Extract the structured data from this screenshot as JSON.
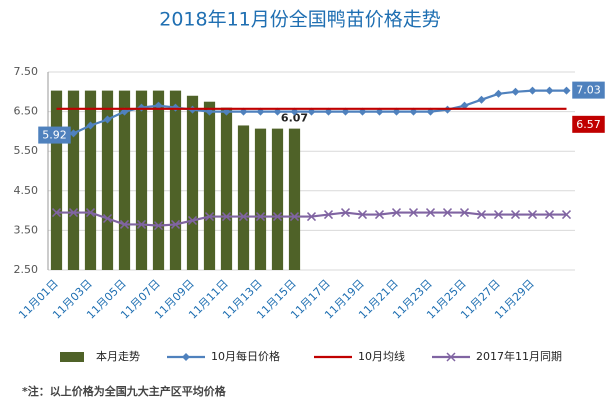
{
  "chart_data": {
    "type": "bar-line",
    "title": "2018年11月份全国鸭苗价格走势",
    "categories": [
      "11月01日",
      null,
      "11月03日",
      null,
      "11月05日",
      null,
      "11月07日",
      null,
      "11月09日",
      null,
      "11月11日",
      null,
      "11月13日",
      null,
      "11月15日",
      null,
      "11月17日",
      null,
      "11月19日",
      null,
      "11月21日",
      null,
      "11月23日",
      null,
      "11月25日",
      null,
      "11月27日",
      null,
      "11月29日",
      null,
      null
    ],
    "ylim": [
      2.5,
      7.5
    ],
    "yticks": [
      {
        "value": 2.5,
        "label": "2.50"
      },
      {
        "value": 3.5,
        "label": "3.50"
      },
      {
        "value": 4.5,
        "label": "4.50"
      },
      {
        "value": 5.5,
        "label": "5.50"
      },
      {
        "value": 6.5,
        "label": "6.50"
      },
      {
        "value": 7.5,
        "label": "7.50"
      }
    ],
    "series": [
      {
        "name": "本月走势",
        "kind": "bar",
        "color": "#4f6228",
        "values": [
          7.03,
          7.03,
          7.03,
          7.03,
          7.03,
          7.03,
          7.03,
          7.03,
          6.9,
          6.75,
          6.6,
          6.15,
          6.07,
          6.07,
          6.07,
          null,
          null,
          null,
          null,
          null,
          null,
          null,
          null,
          null,
          null,
          null,
          null,
          null,
          null,
          null,
          null
        ]
      },
      {
        "name": "10月每日价格",
        "kind": "line",
        "marker": "diamond",
        "color": "#4f81bd",
        "values": [
          5.92,
          5.95,
          6.15,
          6.3,
          6.5,
          6.6,
          6.65,
          6.6,
          6.55,
          6.5,
          6.5,
          6.5,
          6.5,
          6.5,
          6.5,
          6.5,
          6.5,
          6.5,
          6.5,
          6.5,
          6.5,
          6.5,
          6.5,
          6.55,
          6.65,
          6.8,
          6.95,
          7.0,
          7.03,
          7.03,
          7.03
        ]
      },
      {
        "name": "10月均线",
        "kind": "line",
        "marker": "none",
        "color": "#c00000",
        "values": [
          6.57,
          6.57,
          6.57,
          6.57,
          6.57,
          6.57,
          6.57,
          6.57,
          6.57,
          6.57,
          6.57,
          6.57,
          6.57,
          6.57,
          6.57,
          6.57,
          6.57,
          6.57,
          6.57,
          6.57,
          6.57,
          6.57,
          6.57,
          6.57,
          6.57,
          6.57,
          6.57,
          6.57,
          6.57,
          6.57,
          6.57
        ]
      },
      {
        "name": "2017年11月同期",
        "kind": "line",
        "marker": "x",
        "color": "#8064a2",
        "values": [
          3.95,
          3.95,
          3.95,
          3.8,
          3.65,
          3.65,
          3.62,
          3.65,
          3.75,
          3.85,
          3.85,
          3.85,
          3.85,
          3.85,
          3.85,
          3.85,
          3.9,
          3.95,
          3.9,
          3.9,
          3.95,
          3.95,
          3.95,
          3.95,
          3.95,
          3.9,
          3.9,
          3.9,
          3.9,
          3.9,
          3.9
        ]
      }
    ],
    "footnote": "*注：以上价格为全国九大主产区平均价格"
  }
}
